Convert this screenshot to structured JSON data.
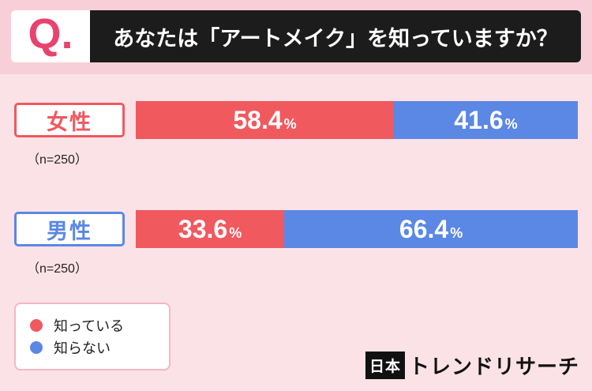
{
  "colors": {
    "background": "#FBE2E7",
    "background_top_band": "#F8CFD8",
    "header_bg": "#1C1C1C",
    "q_accent": "#E8436E",
    "yes_color": "#F0595E",
    "no_color": "#5B87E5",
    "legend_border": "#F3B7C6"
  },
  "header": {
    "q_label": "Q.",
    "title": "あなたは「アートメイク」を知っていますか？"
  },
  "chart_data": {
    "type": "bar",
    "orientation": "horizontal",
    "stacked": true,
    "title": "あなたは「アートメイク」を知っていますか？",
    "categories": [
      "女性",
      "男性"
    ],
    "sample_sizes": [
      "（n=250）",
      "（n=250）"
    ],
    "series": [
      {
        "name": "知っている",
        "color": "#F0595E",
        "values": [
          58.4,
          33.6
        ]
      },
      {
        "name": "知らない",
        "color": "#5B87E5",
        "values": [
          41.6,
          66.4
        ]
      }
    ],
    "unit": "%",
    "xlim": [
      0,
      100
    ],
    "grid": false,
    "legend_position": "bottom-left"
  },
  "rows": [
    {
      "label": "女性",
      "n": "（n=250）",
      "segments": [
        {
          "name": "知っている",
          "pct": 58.4,
          "value_text": "58.4",
          "suffix": "%"
        },
        {
          "name": "知らない",
          "pct": 41.6,
          "value_text": "41.6",
          "suffix": "%"
        }
      ]
    },
    {
      "label": "男性",
      "n": "（n=250）",
      "segments": [
        {
          "name": "知っている",
          "pct": 33.6,
          "value_text": "33.6",
          "suffix": "%"
        },
        {
          "name": "知らない",
          "pct": 66.4,
          "value_text": "66.4",
          "suffix": "%"
        }
      ]
    }
  ],
  "legend": {
    "items": [
      {
        "label": "知っている",
        "color": "#F0595E"
      },
      {
        "label": "知らない",
        "color": "#5B87E5"
      }
    ]
  },
  "footer": {
    "logo_prefix": "日本",
    "logo_suffix": "トレンドリサーチ"
  }
}
